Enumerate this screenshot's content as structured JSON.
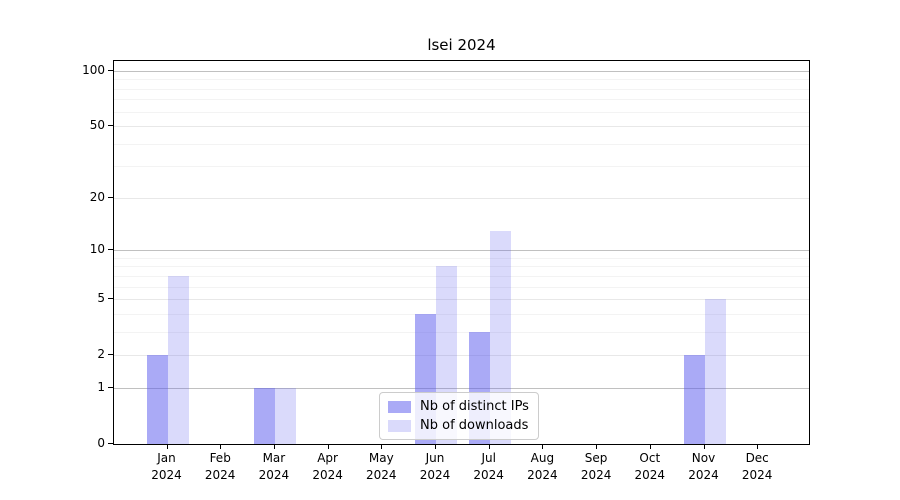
{
  "chart_data": {
    "type": "bar",
    "title": "lsei 2024",
    "categories": [
      "Jan",
      "Feb",
      "Mar",
      "Apr",
      "May",
      "Jun",
      "Jul",
      "Aug",
      "Sep",
      "Oct",
      "Nov",
      "Dec"
    ],
    "x_year": "2024",
    "series": [
      {
        "name": "Nb of distinct IPs",
        "hex": "#aaaaf6",
        "fill": "rgba(85,85,238,0.5)",
        "values": [
          2,
          0,
          1,
          0,
          0,
          4,
          3,
          0,
          0,
          0,
          2,
          0
        ]
      },
      {
        "name": "Nb of downloads",
        "hex": "#dadaf8",
        "fill": "rgba(85,85,238,0.22)",
        "values": [
          7,
          0,
          1,
          0,
          0,
          8,
          13,
          0,
          0,
          0,
          5,
          0
        ]
      }
    ],
    "y_scale": "log1p",
    "y_ticks": [
      0,
      1,
      2,
      5,
      10,
      20,
      50,
      100
    ],
    "ylim": [
      0,
      113
    ],
    "grid": {
      "decade_values": [
        1,
        10,
        100
      ],
      "mid_values": [
        2,
        5,
        20,
        50
      ],
      "minor_values": [
        3,
        4,
        6,
        7,
        8,
        9,
        30,
        40,
        60,
        70,
        80,
        90
      ],
      "decade_color": "#c0c0c0",
      "mid_color": "#e8e8e8",
      "minor_color": "#f3f3f3"
    },
    "legend": {
      "position": "lower center",
      "entries": [
        "Nb of distinct IPs",
        "Nb of downloads"
      ]
    },
    "axis_color": "#000000"
  }
}
